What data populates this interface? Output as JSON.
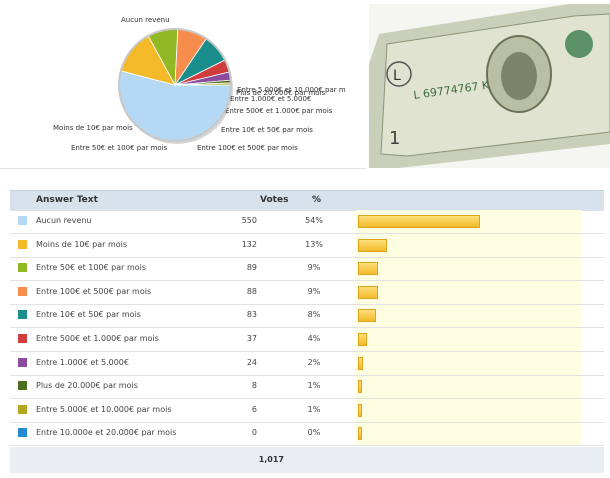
{
  "table": {
    "col_answer": "Answer Text",
    "col_votes": "Votes",
    "col_pct": "%",
    "total": "1,017"
  },
  "chart_data": {
    "type": "pie",
    "slices": [
      {
        "label": "Aucun revenu",
        "value": 550,
        "pct": "54%",
        "color": "#b5d9f4"
      },
      {
        "label": "Moins de 10€ par mois",
        "value": 132,
        "pct": "13%",
        "color": "#f3b928"
      },
      {
        "label": "Entre 50€ et 100€ par mois",
        "value": 89,
        "pct": "9%",
        "color": "#91b923"
      },
      {
        "label": "Entre 100€ et 500€ par mois",
        "value": 88,
        "pct": "9%",
        "color": "#f68d4c"
      },
      {
        "label": "Entre 10€ et 50€ par mois",
        "value": 83,
        "pct": "8%",
        "color": "#1a8d8d"
      },
      {
        "label": "Entre 500€ et 1.000€ par mois",
        "value": 37,
        "pct": "4%",
        "color": "#cf3d3d"
      },
      {
        "label": "Entre 1.000€ et 5.000€",
        "value": 24,
        "pct": "2%",
        "color": "#8b4c9e"
      },
      {
        "label": "Plus de 20.000€ par mois",
        "value": 8,
        "pct": "1%",
        "color": "#4c6e1e"
      },
      {
        "label": "Entre 5.000€ et 10.000€ par m",
        "value": 6,
        "pct": "1%",
        "color": "#b3a81e"
      },
      {
        "label": "Entre 10.000e et 20.000€ par mois",
        "value": 0,
        "pct": "0%",
        "color": "#2489cf"
      }
    ]
  },
  "bars": [
    {
      "label": "Aucun revenu",
      "fraction": 0.54
    },
    {
      "label": "Moins de 10€ par mois",
      "fraction": 0.13
    },
    {
      "label": "Entre 50€ et 100€ par mois",
      "fraction": 0.09
    },
    {
      "label": "Entre 100€ et 500€ par mois",
      "fraction": 0.09
    },
    {
      "label": "Entre 10€ et 50€ par mois",
      "fraction": 0.08
    },
    {
      "label": "Entre 500€ et 1.000€ par mois",
      "fraction": 0.04
    },
    {
      "label": "Entre 1.000€ et 5.000€",
      "fraction": 0.02
    },
    {
      "label": "Plus de 20.000€ par mois",
      "fraction": 0.01
    },
    {
      "label": "Entre 5.000€ et 10.000€ par mois",
      "fraction": 0.01
    },
    {
      "label": "Entre 10.000e et 20.000€ par mois",
      "fraction": 0.0
    }
  ],
  "table_labels": [
    "Aucun revenu",
    "Moins de 10€ par mois",
    "Entre 50€ et 100€ par mois",
    "Entre 100€ et 500€ par mois",
    "Entre 10€ et 50€ par mois",
    "Entre 500€ et 1.000€ par mois",
    "Entre 1.000€ et 5.000€",
    "Plus de 20.000€ par mois",
    "Entre 5.000€ et 10.000€ par mois",
    "Entre 10.000e et 20.000€ par mois"
  ],
  "photo": {
    "bill_serial": "L 69774767 K",
    "bill_letter": "L",
    "bill_number": "1"
  }
}
